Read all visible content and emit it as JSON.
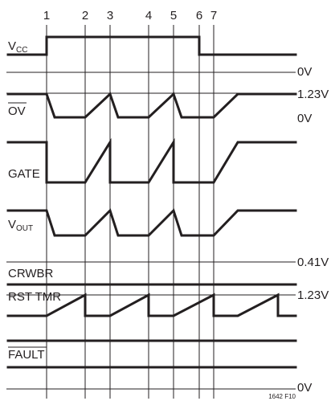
{
  "markers": [
    "1",
    "2",
    "3",
    "4",
    "5",
    "6",
    "7"
  ],
  "signals": {
    "vcc": {
      "main": "V",
      "sub": "CC"
    },
    "ov": {
      "label": "OV"
    },
    "gate": {
      "label": "GATE"
    },
    "vout": {
      "main": "V",
      "sub": "OUT"
    },
    "crwbr": {
      "label": "CRWBR"
    },
    "rst_tmr": {
      "label": "RST TMR"
    },
    "fault": {
      "label": "FAULT"
    }
  },
  "levels": {
    "vcc_zero": "0V",
    "ov_high": "1.23V",
    "ov_zero": "0V",
    "crwbr": "0.41V",
    "rst_tmr": "1.23V",
    "fault_zero": "0V"
  },
  "figure_id": "1642 F10"
}
